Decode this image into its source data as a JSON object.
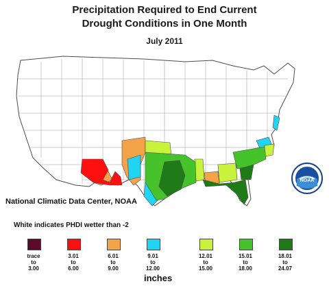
{
  "title_line1": "Precipitation Required to End Current",
  "title_line2": "Drought Conditions in One Month",
  "date": "July 2011",
  "credit": "National Climatic Data Center, NOAA",
  "note": "White indicates PHDI wetter than -2",
  "unit": "inches",
  "logo_text": "NOAA",
  "legend": [
    {
      "from": "trace",
      "to": "3.00",
      "color": "#5b0a2a"
    },
    {
      "from": "3.01",
      "to": "6.00",
      "color": "#ff1010"
    },
    {
      "from": "6.01",
      "to": "9.00",
      "color": "#f5a348"
    },
    {
      "from": "9.01",
      "to": "12.00",
      "color": "#22d4f4"
    },
    {
      "from": "12.01",
      "to": "15.00",
      "color": "#c8f23c"
    },
    {
      "from": "15.01",
      "to": "18.00",
      "color": "#46c22a"
    },
    {
      "from": "18.01",
      "to": "24.07",
      "color": "#1f7a18"
    }
  ],
  "base_color": "#ffffff",
  "border_color": "#4a4a4a"
}
